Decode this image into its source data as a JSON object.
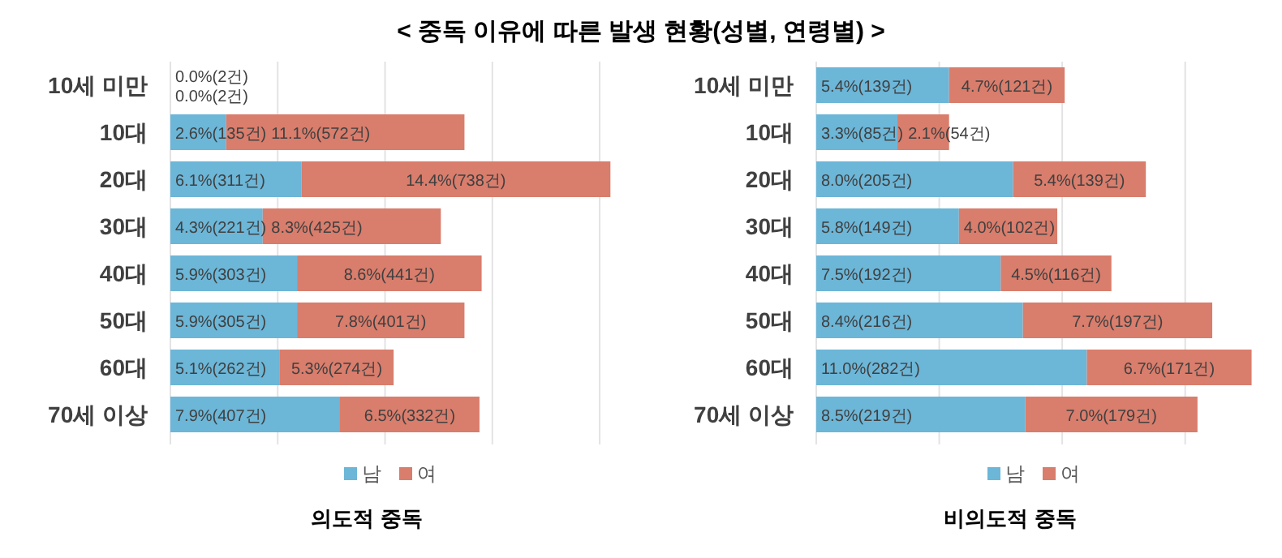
{
  "chart_data": [
    {
      "type": "bar",
      "title": "< 중독 이유에 따른 발생 현황(성별, 연령별) >",
      "xlabel": "의도적 중독",
      "orientation": "horizontal",
      "stacked": true,
      "grid": "x",
      "legend": "bottom",
      "categories": [
        "10세 미만",
        "10대",
        "20대",
        "30대",
        "40대",
        "50대",
        "60대",
        "70세 이상"
      ],
      "series": [
        {
          "name": "남",
          "color": "#6cb6d8",
          "values": [
            0.0,
            2.6,
            6.1,
            4.3,
            5.9,
            5.9,
            5.1,
            7.9
          ],
          "value_labels": [
            "0.0%(2건)",
            "2.6%(135건)",
            "6.1%(311건)",
            "4.3%(221건)",
            "5.9%(303건)",
            "5.9%(305건)",
            "5.1%(262건)",
            "7.9%(407건)"
          ]
        },
        {
          "name": "여",
          "color": "#d97d6c",
          "values": [
            0.0,
            11.1,
            14.4,
            8.3,
            8.6,
            7.8,
            5.3,
            6.5
          ],
          "value_labels": [
            "0.0%(2건)",
            "11.1%(572건)",
            "14.4%(738건)",
            "8.3%(425건)",
            "8.6%(441건)",
            "7.8%(401건)",
            "5.3%(274건)",
            "6.5%(332건)"
          ]
        }
      ]
    },
    {
      "type": "bar",
      "xlabel": "비의도적 중독",
      "orientation": "horizontal",
      "stacked": true,
      "grid": "x",
      "legend": "bottom",
      "categories": [
        "10세 미만",
        "10대",
        "20대",
        "30대",
        "40대",
        "50대",
        "60대",
        "70세 이상"
      ],
      "series": [
        {
          "name": "남",
          "color": "#6cb6d8",
          "values": [
            5.4,
            3.3,
            8.0,
            5.8,
            7.5,
            8.4,
            11.0,
            8.5
          ],
          "value_labels": [
            "5.4%(139건)",
            "3.3%(85건)",
            "8.0%(205건)",
            "5.8%(149건)",
            "7.5%(192건)",
            "8.4%(216건)",
            "11.0%(282건)",
            "8.5%(219건)"
          ]
        },
        {
          "name": "여",
          "color": "#d97d6c",
          "values": [
            4.7,
            2.1,
            5.4,
            4.0,
            4.5,
            7.7,
            6.7,
            7.0
          ],
          "value_labels": [
            "4.7%(121건)",
            "2.1%(54건)",
            "5.4%(139건)",
            "4.0%(102건)",
            "4.5%(116건)",
            "7.7%(197건)",
            "6.7%(171건)",
            "7.0%(179건)"
          ]
        }
      ]
    }
  ]
}
